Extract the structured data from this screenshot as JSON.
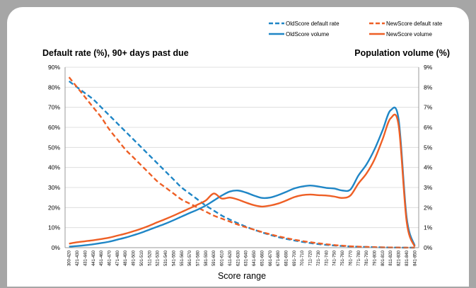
{
  "chart_data": {
    "type": "line",
    "left_axis_title": "Default rate (%), 90+ days past due",
    "right_axis_title": "Population volume (%)",
    "xlabel": "Score range",
    "categories": [
      "300-420",
      "421-430",
      "431-440",
      "441-450",
      "451-460",
      "461-470",
      "471-480",
      "481-490",
      "491-500",
      "501-510",
      "511-520",
      "521-530",
      "531-540",
      "541-550",
      "551-560",
      "561-570",
      "571-580",
      "581-590",
      "591-600",
      "601-610",
      "611-620",
      "621-630",
      "631-640",
      "641-650",
      "651-660",
      "661-670",
      "671-680",
      "681-690",
      "691-700",
      "701-710",
      "711-720",
      "721-730",
      "731-740",
      "741-750",
      "751-760",
      "761-770",
      "771-780",
      "781-790",
      "791-800",
      "801-810",
      "811-820",
      "821-830",
      "831-840",
      "841-850"
    ],
    "left_ticks": [
      "0%",
      "10%",
      "20%",
      "30%",
      "40%",
      "50%",
      "60%",
      "70%",
      "80%",
      "90%"
    ],
    "right_ticks": [
      "0%",
      "1%",
      "2%",
      "3%",
      "4%",
      "5%",
      "6%",
      "7%",
      "8%",
      "9%"
    ],
    "ylim_left": [
      0,
      90
    ],
    "ylim_right": [
      0,
      9
    ],
    "grid": true,
    "legend_position": "top-right",
    "series": [
      {
        "name": "OldScore default rate",
        "axis": "left",
        "style": "dashed",
        "color": "#1f86c6",
        "values": [
          83,
          80,
          77,
          74,
          70,
          66,
          62,
          58,
          54,
          50,
          46,
          42,
          38,
          34,
          30,
          27,
          24,
          21,
          18.5,
          16,
          14,
          12.2,
          10.5,
          9,
          7.6,
          6.4,
          5.3,
          4.4,
          3.6,
          2.9,
          2.3,
          1.8,
          1.4,
          1.1,
          0.8,
          0.6,
          0.45,
          0.35,
          0.25,
          0.15,
          0.1,
          0.05,
          0.02,
          0.01
        ]
      },
      {
        "name": "NewScore default rate",
        "axis": "left",
        "style": "dashed",
        "color": "#ee5f25",
        "values": [
          85,
          80,
          75,
          70,
          65,
          59,
          54,
          49,
          45,
          41,
          37,
          33,
          30,
          27,
          24,
          22,
          20,
          18,
          16,
          14.5,
          13,
          11.5,
          10.2,
          9,
          7.8,
          6.7,
          5.7,
          4.8,
          4,
          3.3,
          2.7,
          2.2,
          1.7,
          1.3,
          1,
          0.7,
          0.5,
          0.35,
          0.25,
          0.15,
          0.1,
          0.05,
          0.02,
          0.01
        ]
      },
      {
        "name": "OldScore volume",
        "axis": "right",
        "style": "solid",
        "color": "#1f86c6",
        "values": [
          0.05,
          0.08,
          0.12,
          0.17,
          0.23,
          0.3,
          0.4,
          0.5,
          0.62,
          0.75,
          0.9,
          1.05,
          1.2,
          1.37,
          1.55,
          1.73,
          1.9,
          2.1,
          2.35,
          2.6,
          2.8,
          2.85,
          2.75,
          2.6,
          2.48,
          2.5,
          2.62,
          2.78,
          2.95,
          3.05,
          3.1,
          3.05,
          2.98,
          2.95,
          2.85,
          2.9,
          3.6,
          4.15,
          4.9,
          5.85,
          6.85,
          6.4,
          1.5,
          0.1
        ]
      },
      {
        "name": "NewScore volume",
        "axis": "right",
        "style": "solid",
        "color": "#ee5f25",
        "values": [
          0.2,
          0.27,
          0.32,
          0.37,
          0.43,
          0.5,
          0.6,
          0.7,
          0.82,
          0.95,
          1.1,
          1.27,
          1.43,
          1.6,
          1.78,
          1.96,
          2.15,
          2.35,
          2.7,
          2.45,
          2.5,
          2.4,
          2.25,
          2.12,
          2.05,
          2.1,
          2.2,
          2.35,
          2.52,
          2.62,
          2.65,
          2.62,
          2.6,
          2.55,
          2.48,
          2.6,
          3.2,
          3.7,
          4.4,
          5.4,
          6.45,
          6.1,
          1.3,
          0.05
        ]
      }
    ]
  }
}
